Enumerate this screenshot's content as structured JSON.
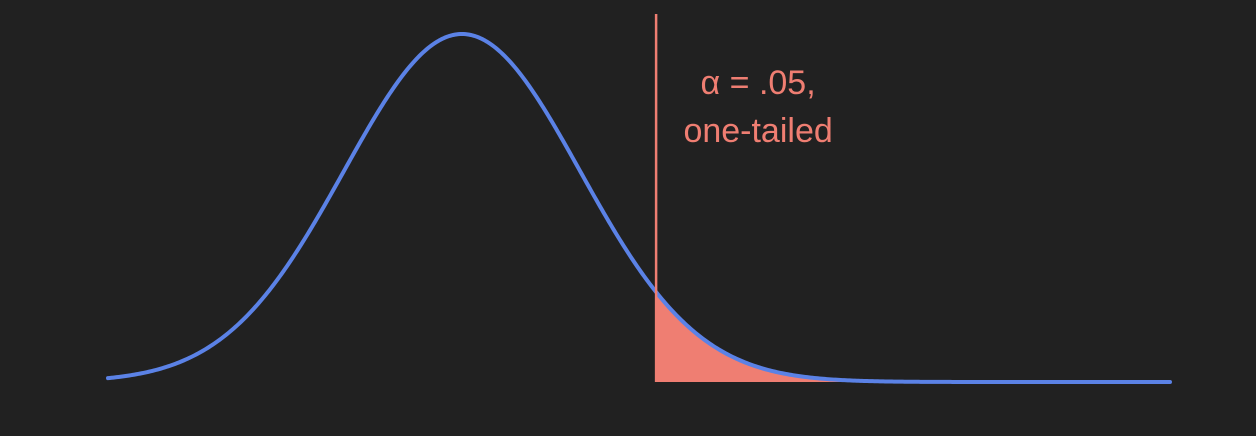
{
  "colors": {
    "background": "#212121",
    "curve": "#5b82e6",
    "critical": "#ef7e72"
  },
  "chart_data": {
    "type": "area",
    "title": "",
    "xlabel": "",
    "ylabel": "",
    "distribution": "normal",
    "mean": 0,
    "sd": 1,
    "xlim": [
      -3,
      6
    ],
    "critical_value": 1.645,
    "alpha": 0.05,
    "tail": "right",
    "shaded_region": "right-tail",
    "grid": false,
    "annotation": {
      "line1": "α = .05,",
      "line2": "one-tailed"
    }
  }
}
